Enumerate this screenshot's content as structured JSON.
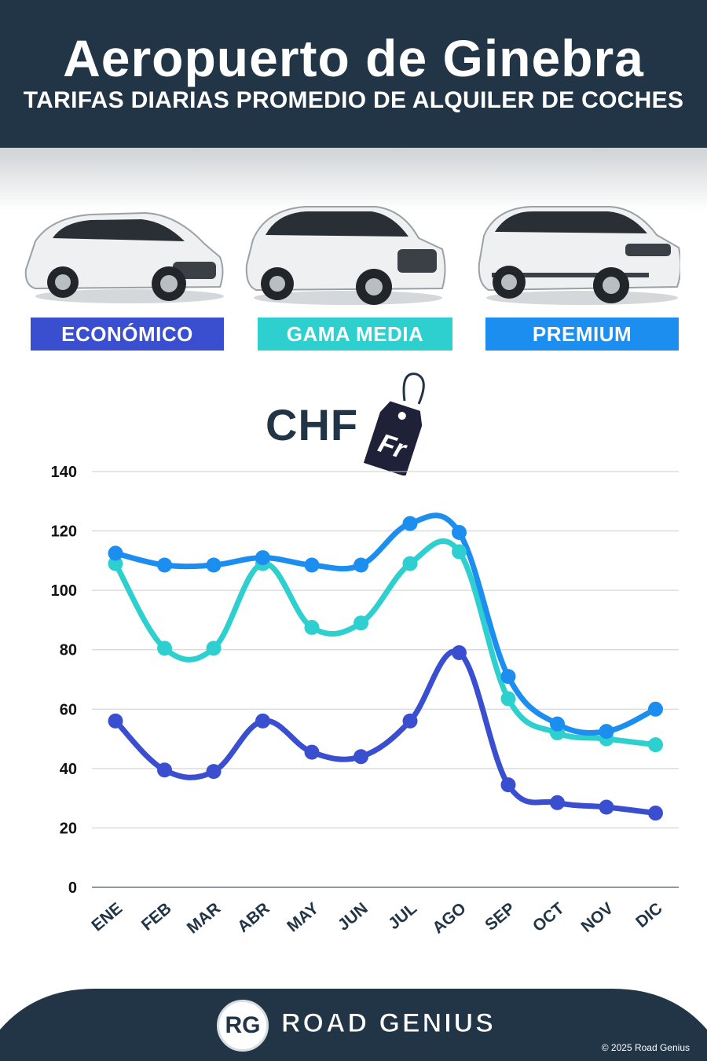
{
  "header": {
    "title": "Aeropuerto de Ginebra",
    "subtitle": "TARIFAS DIARIAS PROMEDIO DE ALQUILER DE COCHES"
  },
  "categories": [
    {
      "label": "ECONÓMICO",
      "color": "#3a4fd0"
    },
    {
      "label": "GAMA MEDIA",
      "color": "#2ecfcf"
    },
    {
      "label": "PREMIUM",
      "color": "#1b8ef0"
    }
  ],
  "currency": {
    "label": "CHF",
    "tag_text": "Fr"
  },
  "chart_data": {
    "type": "line",
    "categories": [
      "ENE",
      "FEB",
      "MAR",
      "ABR",
      "MAY",
      "JUN",
      "JUL",
      "AGO",
      "SEP",
      "OCT",
      "NOV",
      "DIC"
    ],
    "series": [
      {
        "name": "ECONÓMICO",
        "color": "#3a4fd0",
        "values": [
          56,
          39.5,
          39,
          56,
          45.5,
          44,
          56,
          79,
          34.5,
          28.5,
          27,
          25
        ]
      },
      {
        "name": "GAMA MEDIA",
        "color": "#2ecfcf",
        "values": [
          109,
          80.5,
          80.5,
          109,
          87.5,
          89,
          109,
          113,
          63.5,
          52,
          50,
          48
        ]
      },
      {
        "name": "PREMIUM",
        "color": "#1b8ef0",
        "values": [
          112.5,
          108.5,
          108.5,
          111,
          108.5,
          108.5,
          122.5,
          119.5,
          71,
          55,
          52.5,
          60
        ]
      }
    ],
    "yticks": [
      0,
      20,
      40,
      60,
      80,
      100,
      120,
      140
    ],
    "ylim": [
      0,
      140
    ],
    "grid": true,
    "title": "",
    "xlabel": "",
    "ylabel": ""
  },
  "footer": {
    "brand": "ROAD GENIUS",
    "logo": "RG",
    "copyright": "© 2025 Road Genius"
  }
}
